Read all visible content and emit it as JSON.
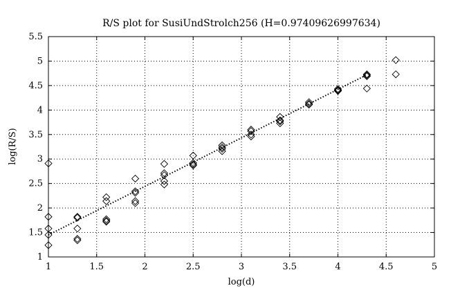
{
  "chart_data": {
    "type": "scatter",
    "title": "R/S plot for SusiUndStrolch256 (H=0.97409626997634)",
    "xlabel": "log(d)",
    "ylabel": "log(R/S)",
    "xlim": [
      1,
      5
    ],
    "ylim": [
      1,
      5.5
    ],
    "xticks": [
      "1",
      "1.5",
      "2",
      "2.5",
      "3",
      "3.5",
      "4",
      "4.5",
      "5"
    ],
    "yticks": [
      "1",
      "1.5",
      "2",
      "2.5",
      "3",
      "3.5",
      "4",
      "4.5",
      "5",
      "5.5"
    ],
    "grid": true,
    "marker": "diamond",
    "fit_line": {
      "x": [
        1.0,
        4.3
      ],
      "y": [
        1.45,
        4.72
      ],
      "style": "dotted"
    },
    "points": [
      [
        1.0,
        2.91
      ],
      [
        1.0,
        1.82
      ],
      [
        1.0,
        1.58
      ],
      [
        1.0,
        1.45
      ],
      [
        1.0,
        1.24
      ],
      [
        1.3,
        1.82
      ],
      [
        1.3,
        1.8
      ],
      [
        1.3,
        1.58
      ],
      [
        1.3,
        1.37
      ],
      [
        1.3,
        1.34
      ],
      [
        1.6,
        2.22
      ],
      [
        1.6,
        2.14
      ],
      [
        1.6,
        1.77
      ],
      [
        1.6,
        1.74
      ],
      [
        1.6,
        1.72
      ],
      [
        1.9,
        2.6
      ],
      [
        1.9,
        2.34
      ],
      [
        1.9,
        2.31
      ],
      [
        1.9,
        2.14
      ],
      [
        1.9,
        2.1
      ],
      [
        2.2,
        2.9
      ],
      [
        2.2,
        2.71
      ],
      [
        2.2,
        2.67
      ],
      [
        2.2,
        2.55
      ],
      [
        2.2,
        2.48
      ],
      [
        2.5,
        3.07
      ],
      [
        2.5,
        2.92
      ],
      [
        2.5,
        2.89
      ],
      [
        2.5,
        2.87
      ],
      [
        2.8,
        3.28
      ],
      [
        2.8,
        3.24
      ],
      [
        2.8,
        3.21
      ],
      [
        2.8,
        3.16
      ],
      [
        3.1,
        3.6
      ],
      [
        3.1,
        3.57
      ],
      [
        3.1,
        3.5
      ],
      [
        3.1,
        3.46
      ],
      [
        3.4,
        3.86
      ],
      [
        3.4,
        3.79
      ],
      [
        3.4,
        3.77
      ],
      [
        3.4,
        3.73
      ],
      [
        3.7,
        4.16
      ],
      [
        3.7,
        4.13
      ],
      [
        3.7,
        4.11
      ],
      [
        4.0,
        4.43
      ],
      [
        4.0,
        4.41
      ],
      [
        4.0,
        4.4
      ],
      [
        4.0,
        4.39
      ],
      [
        4.3,
        4.73
      ],
      [
        4.3,
        4.71
      ],
      [
        4.3,
        4.69
      ],
      [
        4.3,
        4.44
      ],
      [
        4.6,
        5.02
      ],
      [
        4.6,
        4.73
      ]
    ]
  }
}
